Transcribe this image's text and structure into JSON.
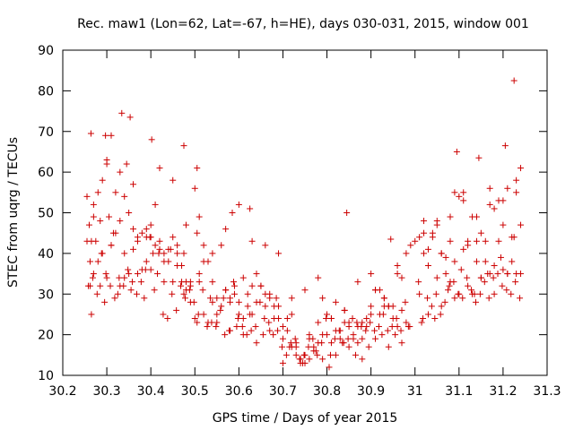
{
  "chart_data": {
    "type": "scatter",
    "title": "Rec. maw1 (Lon=62, Lat=-67, h=HE), days 030-031, 2015, window 001",
    "xlabel": "GPS time / Days of year 2015",
    "ylabel": "STEC from uqrg / TECUs",
    "xlim": [
      30.2,
      31.3
    ],
    "ylim": [
      10,
      90
    ],
    "xticks": [
      30.2,
      30.3,
      30.4,
      30.5,
      30.6,
      30.7,
      30.8,
      30.9,
      31,
      31.1,
      31.2,
      31.3
    ],
    "xtick_labels": [
      "30.2",
      "30.3",
      "30.4",
      "30.5",
      "30.6",
      "30.7",
      "30.8",
      "30.9",
      "31",
      "31.1",
      "31.2",
      "31.3"
    ],
    "yticks": [
      10,
      20,
      30,
      40,
      50,
      60,
      70,
      80,
      90
    ],
    "ytick_labels": [
      "10",
      "20",
      "30",
      "40",
      "50",
      "60",
      "70",
      "80",
      "90"
    ],
    "grid": false,
    "legend": "none",
    "marker": "+",
    "color": "#cc0000",
    "series": [
      {
        "name": "STEC",
        "x": [
          30.255,
          30.26,
          30.265,
          30.262,
          30.27,
          30.28,
          30.285,
          30.29,
          30.3,
          30.305,
          30.31,
          30.315,
          30.32,
          30.33,
          30.34,
          30.345,
          30.35,
          30.36,
          30.37,
          30.38,
          30.39,
          30.4,
          30.405,
          30.41,
          30.42,
          30.43,
          30.44,
          30.45,
          30.46,
          30.47,
          30.475,
          30.48,
          30.49,
          30.5,
          30.505,
          30.51,
          30.52,
          30.53,
          30.54,
          30.55,
          30.56,
          30.57,
          30.58,
          30.59,
          30.6,
          30.61,
          30.62,
          30.63,
          30.64,
          30.65,
          30.66,
          30.67,
          30.68,
          30.69,
          30.7,
          30.71,
          30.72,
          30.73,
          30.74,
          30.75,
          30.76,
          30.77,
          30.78,
          30.79,
          30.8,
          30.81,
          30.82,
          30.83,
          30.84,
          30.85,
          30.86,
          30.87,
          30.88,
          30.89,
          30.9,
          30.91,
          30.92,
          30.93,
          30.94,
          30.95,
          30.96,
          30.97,
          30.98,
          30.99,
          31.0,
          31.01,
          31.02,
          31.03,
          31.04,
          31.05,
          31.06,
          31.07,
          31.08,
          31.09,
          31.1,
          31.11,
          31.12,
          31.13,
          31.14,
          31.15,
          31.16,
          31.17,
          31.18,
          31.19,
          31.2,
          31.21,
          31.22,
          31.23,
          31.24,
          30.255,
          30.262,
          30.27,
          30.275,
          30.285,
          30.29,
          30.3,
          30.31,
          30.32,
          30.33,
          30.34,
          30.35,
          30.36,
          30.37,
          30.38,
          30.39,
          30.4,
          30.41,
          30.42,
          30.43,
          30.44,
          30.45,
          30.46,
          30.47,
          30.48,
          30.49,
          30.5,
          30.51,
          30.52,
          30.53,
          30.54,
          30.55,
          30.56,
          30.57,
          30.58,
          30.59,
          30.6,
          30.61,
          30.62,
          30.63,
          30.64,
          30.65,
          30.66,
          30.67,
          30.68,
          30.69,
          30.7,
          30.71,
          30.72,
          30.73,
          30.74,
          30.75,
          30.76,
          30.77,
          30.78,
          30.79,
          30.8,
          30.81,
          30.82,
          30.83,
          30.84,
          30.85,
          30.86,
          30.87,
          30.88,
          30.89,
          30.9,
          30.91,
          30.92,
          30.93,
          30.94,
          30.95,
          30.96,
          30.97,
          30.98,
          31.01,
          31.02,
          31.03,
          31.04,
          31.05,
          31.06,
          31.07,
          31.08,
          31.09,
          31.1,
          31.11,
          31.12,
          31.13,
          31.14,
          31.15,
          31.16,
          31.17,
          31.18,
          31.19,
          31.2,
          31.21,
          31.22,
          31.23,
          31.24,
          30.258,
          30.268,
          30.278,
          30.288,
          30.298,
          30.308,
          30.318,
          30.328,
          30.338,
          30.348,
          30.358,
          30.368,
          30.378,
          30.388,
          30.398,
          30.408,
          30.418,
          30.428,
          30.438,
          30.448,
          30.458,
          30.468,
          30.478,
          30.488,
          30.498,
          30.508,
          30.518,
          30.528,
          30.538,
          30.548,
          30.558,
          30.568,
          30.578,
          30.588,
          30.598,
          30.608,
          30.618,
          30.628,
          30.638,
          30.648,
          30.658,
          30.668,
          30.678,
          30.688,
          30.698,
          30.708,
          30.718,
          30.728,
          30.738,
          30.748,
          30.758,
          30.768,
          30.778,
          30.788,
          30.798,
          30.808,
          30.818,
          30.828,
          30.838,
          30.848,
          30.858,
          30.868,
          30.878,
          30.888,
          30.898,
          30.908,
          30.918,
          30.928,
          30.938,
          30.948,
          30.958,
          30.968,
          30.978,
          30.988,
          31.008,
          31.018,
          31.028,
          31.038,
          31.048,
          31.058,
          31.068,
          31.078,
          31.088,
          31.098,
          31.108,
          31.118,
          31.128,
          31.138,
          31.148,
          31.158,
          31.168,
          31.178,
          31.188,
          31.198,
          31.208,
          31.218,
          31.228,
          31.238,
          30.265,
          30.28,
          30.295,
          30.31,
          30.325,
          30.34,
          30.355,
          30.37,
          30.385,
          30.4,
          30.415,
          30.43,
          30.445,
          30.46,
          30.475,
          30.49,
          30.505,
          30.52,
          30.535,
          30.55,
          30.565,
          30.58,
          30.595,
          30.61,
          30.625,
          30.64,
          30.655,
          30.67,
          30.685,
          30.7,
          30.715,
          30.73,
          30.745,
          30.76,
          30.775,
          30.79,
          30.805,
          30.82,
          30.835,
          30.85,
          30.865,
          30.88,
          30.895,
          30.91,
          30.925,
          30.94,
          30.955,
          30.97,
          30.985,
          31.015,
          31.03,
          31.045,
          31.06,
          31.075,
          31.09,
          31.105,
          31.12,
          31.135,
          31.15,
          31.165,
          31.18,
          31.195,
          31.21,
          31.225,
          31.24,
          30.27,
          30.3,
          30.33,
          30.36,
          30.39,
          30.42,
          30.45,
          30.48,
          30.51,
          30.54,
          30.57,
          30.6,
          30.63,
          30.66,
          30.69,
          30.72,
          30.75,
          30.78,
          30.81,
          30.84,
          30.87,
          30.9,
          30.93,
          30.96,
          31.02,
          31.05,
          31.08,
          31.11,
          31.14,
          31.17,
          31.2,
          31.23,
          30.264,
          30.297,
          30.334,
          30.353,
          30.402,
          30.475,
          30.505,
          30.585,
          30.625,
          30.845,
          30.945,
          31.095,
          31.145,
          31.205,
          31.225
        ],
        "y": [
          54,
          47,
          43,
          32,
          52,
          55,
          48,
          58,
          63,
          49,
          69,
          45,
          55,
          60,
          54,
          62,
          50,
          46,
          43,
          45,
          44,
          47,
          40,
          52,
          41,
          38,
          41,
          44,
          42,
          37,
          40,
          33,
          32,
          56,
          45,
          35,
          38,
          38,
          33,
          25,
          42,
          31,
          29,
          32,
          28,
          34,
          27,
          25,
          28,
          32,
          30,
          29,
          27,
          24,
          19,
          21,
          17,
          17,
          14,
          13,
          19,
          17,
          18,
          20,
          20,
          18,
          21,
          21,
          26,
          22,
          19,
          22,
          19,
          22,
          25,
          31,
          25,
          27,
          27,
          27,
          37,
          34,
          40,
          42,
          43,
          44,
          45,
          41,
          44,
          48,
          40,
          35,
          43,
          55,
          54,
          55,
          43,
          49,
          38,
          45,
          43,
          56,
          51,
          53,
          53,
          56,
          44,
          58,
          61,
          43,
          38,
          35,
          43,
          32,
          40,
          34,
          42,
          45,
          32,
          40,
          35,
          41,
          44,
          36,
          38,
          36,
          42,
          43,
          40,
          38,
          33,
          40,
          33,
          31,
          28,
          24,
          33,
          25,
          23,
          28,
          29,
          27,
          31,
          28,
          30,
          25,
          24,
          30,
          32,
          35,
          32,
          27,
          30,
          24,
          27,
          22,
          24,
          25,
          18,
          13,
          15,
          20,
          16,
          23,
          29,
          25,
          24,
          28,
          19,
          23,
          23,
          20,
          18,
          23,
          24,
          27,
          31,
          31,
          29,
          27,
          24,
          22,
          26,
          23,
          30,
          40,
          37,
          45,
          34,
          40,
          39,
          33,
          38,
          30,
          41,
          42,
          30,
          43,
          34,
          38,
          35,
          30,
          43,
          36,
          35,
          38,
          35,
          47,
          32,
          34,
          30,
          40,
          35,
          32,
          29,
          34,
          32,
          36,
          33,
          30,
          33,
          36,
          44,
          31,
          40,
          25,
          24,
          30,
          26,
          32,
          29,
          31,
          28,
          25,
          31,
          22,
          23,
          22,
          26,
          20,
          21,
          33,
          24,
          22,
          20,
          21,
          22,
          28,
          24,
          23,
          20,
          21,
          17,
          15,
          18,
          19,
          14,
          15,
          17,
          19,
          15,
          18,
          24,
          15,
          19,
          21,
          18,
          19,
          24,
          23,
          22,
          21,
          23,
          21,
          22,
          25,
          21,
          22,
          24,
          21,
          28,
          22,
          33,
          24,
          29,
          27,
          30,
          25,
          28,
          32,
          33,
          30,
          29,
          34,
          31,
          28,
          30,
          33,
          29,
          34,
          35,
          32,
          31,
          30,
          33,
          29,
          25,
          38,
          28,
          42,
          30,
          34,
          31,
          35,
          29,
          44,
          35,
          33,
          41,
          37,
          30,
          33,
          23,
          42,
          29,
          23,
          29,
          21,
          22,
          20,
          25,
          18,
          20,
          21,
          29,
          13,
          17,
          15,
          13,
          14,
          16,
          14,
          12,
          15,
          18,
          17,
          15,
          14,
          17,
          19,
          20,
          17,
          20,
          18,
          22,
          23,
          25,
          24,
          27,
          31,
          29,
          36,
          32,
          30,
          34,
          35,
          37,
          39,
          35,
          44,
          35,
          49,
          62,
          48,
          57,
          46,
          61,
          58,
          47,
          49,
          40,
          46,
          52,
          43,
          42,
          40,
          29,
          31,
          34,
          24,
          26,
          33,
          35,
          29,
          35,
          48,
          47,
          49,
          53,
          49,
          52,
          47,
          55,
          69.5,
          69,
          74.5,
          73.5,
          68,
          66.5,
          61,
          50,
          51,
          50,
          43.5,
          65,
          63.5,
          66.5,
          82.5
        ]
      }
    ]
  }
}
